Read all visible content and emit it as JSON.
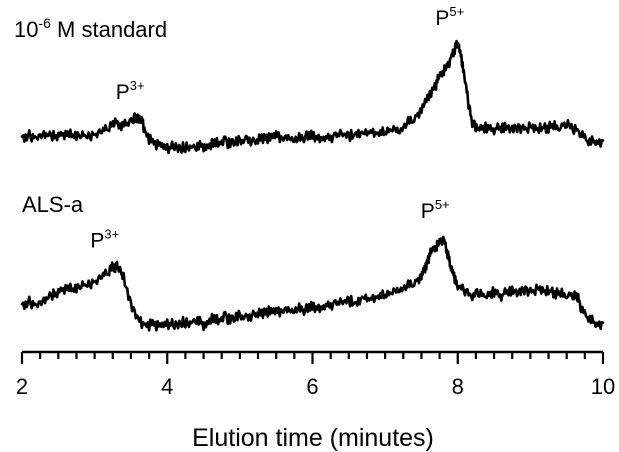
{
  "chart_data": {
    "type": "line",
    "title": "",
    "xlabel": "Elution time (minutes)",
    "ylabel": "",
    "xlim": [
      2,
      10
    ],
    "x_major_ticks": [
      2,
      4,
      6,
      8,
      10
    ],
    "x_minor_step": 0.25,
    "grid": false,
    "legend": "none",
    "series": [
      {
        "name": "10-6 M standard",
        "label": {
          "base": "10",
          "exp": "-6",
          "rest": " M standard"
        },
        "x": [
          2.0,
          2.1,
          2.2,
          2.3,
          2.4,
          2.5,
          2.6,
          2.7,
          2.8,
          2.9,
          3.0,
          3.1,
          3.2,
          3.3,
          3.4,
          3.5,
          3.55,
          3.6,
          3.65,
          3.7,
          3.8,
          3.9,
          4.0,
          4.1,
          4.2,
          4.3,
          4.4,
          4.5,
          4.6,
          4.7,
          4.8,
          4.9,
          5.0,
          5.1,
          5.2,
          5.3,
          5.4,
          5.5,
          5.6,
          5.7,
          5.8,
          5.9,
          6.0,
          6.1,
          6.2,
          6.3,
          6.4,
          6.5,
          6.6,
          6.7,
          6.8,
          6.9,
          7.0,
          7.1,
          7.2,
          7.3,
          7.4,
          7.5,
          7.6,
          7.7,
          7.75,
          7.8,
          7.85,
          7.9,
          7.95,
          8.0,
          8.05,
          8.1,
          8.15,
          8.2,
          8.25,
          8.3,
          8.4,
          8.5,
          8.6,
          8.7,
          8.8,
          8.9,
          9.0,
          9.1,
          9.2,
          9.3,
          9.4,
          9.5,
          9.6,
          9.7,
          9.8,
          9.9,
          10.0
        ],
        "y": [
          0.1,
          0.11,
          0.09,
          0.12,
          0.1,
          0.11,
          0.12,
          0.11,
          0.12,
          0.11,
          0.12,
          0.14,
          0.19,
          0.22,
          0.2,
          0.24,
          0.26,
          0.27,
          0.24,
          0.13,
          0.04,
          0.02,
          0.0,
          0.01,
          0.0,
          0.01,
          0.0,
          0.02,
          0.03,
          0.04,
          0.05,
          0.04,
          0.06,
          0.08,
          0.05,
          0.09,
          0.08,
          0.1,
          0.09,
          0.08,
          0.09,
          0.1,
          0.11,
          0.09,
          0.1,
          0.09,
          0.12,
          0.1,
          0.13,
          0.12,
          0.14,
          0.13,
          0.15,
          0.17,
          0.16,
          0.22,
          0.26,
          0.35,
          0.46,
          0.56,
          0.64,
          0.68,
          0.71,
          0.8,
          0.87,
          0.93,
          0.8,
          0.62,
          0.38,
          0.22,
          0.18,
          0.18,
          0.18,
          0.17,
          0.18,
          0.17,
          0.18,
          0.17,
          0.18,
          0.17,
          0.18,
          0.19,
          0.2,
          0.22,
          0.17,
          0.13,
          0.05,
          0.06,
          0.04
        ],
        "peaks": [
          {
            "label": "P",
            "sup": "3+",
            "x": 3.6
          },
          {
            "label": "P",
            "sup": "5+",
            "x": 8.0
          }
        ]
      },
      {
        "name": "ALS-a",
        "x": [
          2.0,
          2.1,
          2.2,
          2.3,
          2.4,
          2.5,
          2.6,
          2.7,
          2.8,
          2.9,
          3.0,
          3.1,
          3.2,
          3.25,
          3.3,
          3.35,
          3.4,
          3.5,
          3.6,
          3.7,
          3.8,
          3.9,
          4.0,
          4.1,
          4.2,
          4.3,
          4.4,
          4.5,
          4.6,
          4.7,
          4.8,
          4.9,
          5.0,
          5.1,
          5.2,
          5.3,
          5.4,
          5.5,
          5.6,
          5.7,
          5.8,
          5.9,
          6.0,
          6.1,
          6.2,
          6.3,
          6.4,
          6.5,
          6.6,
          6.7,
          6.8,
          6.9,
          7.0,
          7.1,
          7.2,
          7.3,
          7.4,
          7.5,
          7.55,
          7.6,
          7.65,
          7.7,
          7.75,
          7.8,
          7.85,
          7.9,
          7.95,
          8.0,
          8.1,
          8.2,
          8.3,
          8.4,
          8.5,
          8.6,
          8.7,
          8.8,
          8.9,
          9.0,
          9.1,
          9.2,
          9.3,
          9.4,
          9.5,
          9.6,
          9.65,
          9.7,
          9.8,
          9.9,
          10.0
        ],
        "y": [
          0.22,
          0.24,
          0.21,
          0.25,
          0.29,
          0.33,
          0.36,
          0.35,
          0.39,
          0.4,
          0.42,
          0.46,
          0.52,
          0.55,
          0.56,
          0.53,
          0.45,
          0.22,
          0.07,
          0.03,
          0.04,
          0.02,
          0.05,
          0.03,
          0.06,
          0.05,
          0.07,
          0.04,
          0.09,
          0.07,
          0.1,
          0.08,
          0.12,
          0.1,
          0.13,
          0.14,
          0.15,
          0.14,
          0.17,
          0.16,
          0.19,
          0.17,
          0.2,
          0.19,
          0.22,
          0.21,
          0.23,
          0.25,
          0.23,
          0.27,
          0.26,
          0.29,
          0.31,
          0.33,
          0.36,
          0.38,
          0.41,
          0.48,
          0.54,
          0.63,
          0.7,
          0.73,
          0.76,
          0.82,
          0.7,
          0.55,
          0.47,
          0.39,
          0.33,
          0.29,
          0.32,
          0.3,
          0.33,
          0.3,
          0.34,
          0.32,
          0.35,
          0.33,
          0.35,
          0.34,
          0.33,
          0.31,
          0.32,
          0.3,
          0.29,
          0.18,
          0.09,
          0.05,
          0.03
        ],
        "peaks": [
          {
            "label": "P",
            "sup": "3+",
            "x": 3.25
          },
          {
            "label": "P",
            "sup": "5+",
            "x": 7.8
          }
        ]
      }
    ]
  }
}
